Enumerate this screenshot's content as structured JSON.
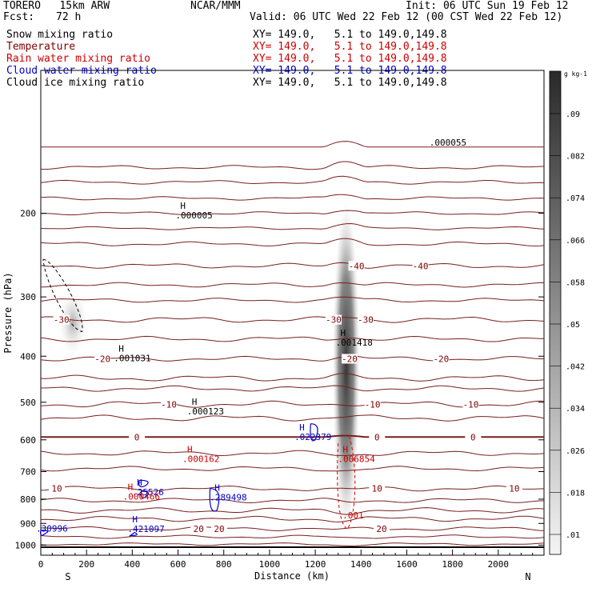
{
  "header": {
    "model": "TORERO   15km ARW",
    "org": "NCAR/MMM",
    "init": "Init: 06 UTC Sun 19 Feb 12",
    "fcst_label": "Fcst:",
    "fcst_value": "72 h",
    "valid": "Valid: 06 UTC Wed 22 Feb 12 (00 CST Wed 22 Feb 12)"
  },
  "fields": [
    {
      "name": "Snow mixing ratio",
      "xy": "XY= 149.0,   5.1 to 149.0,149.8",
      "color": "#000000"
    },
    {
      "name": "Temperature",
      "xy": "XY= 149.0,   5.1 to 149.0,149.8",
      "color": "#800000"
    },
    {
      "name": "Rain water mixing ratio",
      "xy": "XY= 149.0,   5.1 to 149.0,149.8",
      "color": "#cc0000"
    },
    {
      "name": "Cloud water mixing ratio",
      "xy": "XY= 149.0,   5.1 to 149.0,149.8",
      "color": "#0000cc"
    },
    {
      "name": "Cloud ice mixing ratio",
      "xy": "XY= 149.0,   5.1 to 149.0,149.8",
      "color": "#000000"
    }
  ],
  "chart_data": {
    "type": "cross-section",
    "xlabel": "Distance (km)",
    "ylabel": "Pressure (hPa)",
    "xlim": [
      0,
      2200
    ],
    "ylim": [
      1050,
      100
    ],
    "x_ticks": [
      0,
      200,
      400,
      600,
      800,
      1000,
      1200,
      1400,
      1600,
      1800,
      2000
    ],
    "y_ticks": [
      200,
      300,
      400,
      500,
      600,
      700,
      800,
      900,
      1000
    ],
    "end_labels": {
      "left": "S",
      "right": "N"
    },
    "colorbar": {
      "unit": "g kg-1",
      "labels": [
        ".09",
        ".082",
        ".074",
        ".066",
        ".058",
        ".05",
        ".042",
        ".034",
        ".026",
        ".018",
        ".01"
      ]
    },
    "temperature_contours": [
      {
        "label": "-40",
        "pressure": 258,
        "positions": [
          1380,
          1660
        ]
      },
      {
        "label": "-30",
        "pressure": 335,
        "positions": [
          90,
          1280,
          1420
        ]
      },
      {
        "label": "-20",
        "pressure": 405,
        "positions": [
          270,
          1350,
          1750
        ]
      },
      {
        "label": "-10",
        "pressure": 505,
        "positions": [
          560,
          1450,
          1880
        ]
      },
      {
        "label": "0",
        "pressure": 592,
        "positions": [
          420,
          1470,
          1890
        ]
      },
      {
        "label": "10",
        "pressure": 760,
        "positions": [
          70,
          1470,
          2070
        ]
      },
      {
        "label": "20",
        "pressure": 923,
        "positions": [
          690,
          780,
          1490
        ]
      }
    ],
    "annotations": [
      {
        "text": "H",
        "sub": ".000005",
        "x": 610,
        "p": 205,
        "color": "#000000"
      },
      {
        "text": "",
        "sub": ".000055",
        "x": 1720,
        "p": 144,
        "color": "#000000"
      },
      {
        "text": "H",
        "sub": ".001031",
        "x": 340,
        "p": 410,
        "color": "#000000"
      },
      {
        "text": "H",
        "sub": ".001418",
        "x": 1310,
        "p": 380,
        "color": "#000000"
      },
      {
        "text": "H",
        "sub": ".000123",
        "x": 660,
        "p": 530,
        "color": "#000000"
      },
      {
        "text": "H",
        "sub": ".022379",
        "x": 1130,
        "p": 600,
        "color": "#0000cc"
      },
      {
        "text": "H",
        "sub": ".000162",
        "x": 640,
        "p": 668,
        "color": "#cc0000"
      },
      {
        "text": "H",
        "sub": ".006854",
        "x": 1320,
        "p": 668,
        "color": "#cc0000"
      },
      {
        "text": "H",
        "sub": ".25526",
        "x": 420,
        "p": 785,
        "color": "#0000cc"
      },
      {
        "text": "H",
        "sub": ".000466",
        "x": 380,
        "p": 802,
        "color": "#cc0000"
      },
      {
        "text": "H",
        "sub": ".289498",
        "x": 760,
        "p": 805,
        "color": "#0000cc"
      },
      {
        "text": "",
        "sub": ".001",
        "x": 1340,
        "p": 878,
        "color": "#cc0000"
      },
      {
        "text": "H",
        "sub": ".421097",
        "x": 400,
        "p": 938,
        "color": "#0000cc"
      },
      {
        "text": "",
        "sub": ".30996",
        "x": 0,
        "p": 936,
        "color": "#0000cc"
      }
    ]
  }
}
